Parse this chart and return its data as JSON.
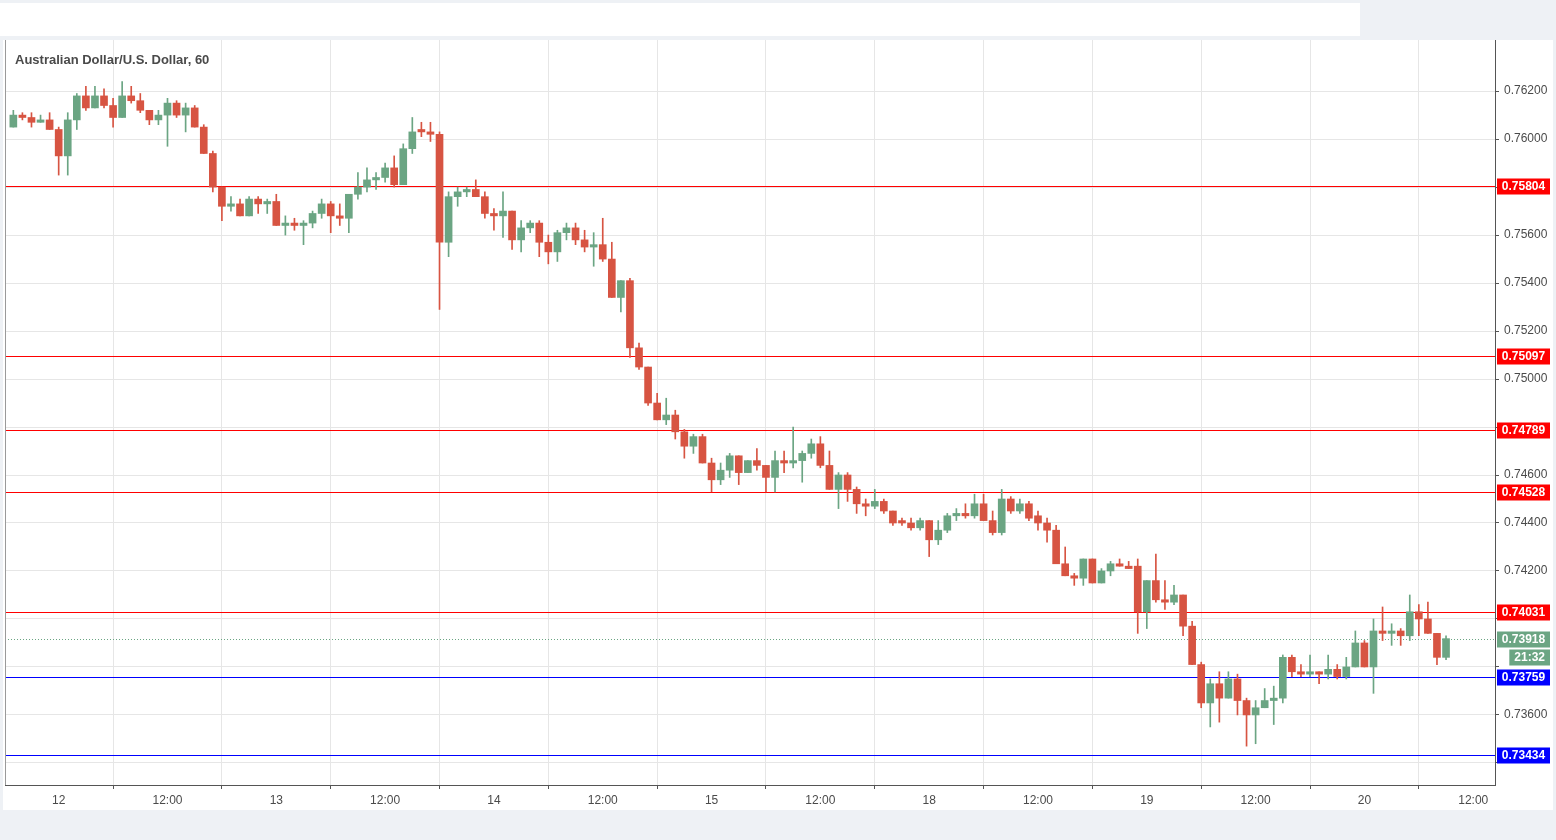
{
  "chart_data": {
    "type": "candlestick",
    "title": "Australian Dollar/U.S. Dollar, 60",
    "categories": [
      null,
      null,
      null,
      null,
      null,
      "12",
      null,
      null,
      null,
      null,
      null,
      null,
      null,
      null,
      null,
      null,
      null,
      "12:00",
      null,
      null,
      null,
      null,
      null,
      null,
      null,
      null,
      null,
      null,
      null,
      "13",
      null,
      null,
      null,
      null,
      null,
      null,
      null,
      null,
      null,
      null,
      null,
      "12:00",
      null,
      null,
      null,
      null,
      null,
      null,
      null,
      null,
      null,
      null,
      null,
      "14",
      null,
      null,
      null,
      null,
      null,
      null,
      null,
      null,
      null,
      null,
      null,
      "12:00",
      null,
      null,
      null,
      null,
      null,
      null,
      null,
      null,
      null,
      null,
      null,
      "15",
      null,
      null,
      null,
      null,
      null,
      null,
      null,
      null,
      null,
      null,
      null,
      "12:00",
      null,
      null,
      null,
      null,
      null,
      null,
      null,
      null,
      null,
      null,
      null,
      "18",
      null,
      null,
      null,
      null,
      null,
      null,
      null,
      null,
      null,
      null,
      null,
      "12:00",
      null,
      null,
      null,
      null,
      null,
      null,
      null,
      null,
      null,
      null,
      null,
      "19",
      null,
      null,
      null,
      null,
      null,
      null,
      null,
      null,
      null,
      null,
      null,
      "12:00",
      null,
      null,
      null,
      null,
      null,
      null,
      null,
      null,
      null,
      null,
      null,
      "20",
      null,
      null,
      null,
      null,
      null,
      null,
      null,
      null,
      null,
      null,
      null,
      "12:00",
      null,
      null
    ],
    "ohlc": [
      [
        0.7605,
        0.7612,
        0.7605,
        0.761
      ],
      [
        0.761,
        0.7611,
        0.7608,
        0.7609
      ],
      [
        0.7609,
        0.7611,
        0.7605,
        0.7607
      ],
      [
        0.7607,
        0.761,
        0.7607,
        0.7608
      ],
      [
        0.7608,
        0.7611,
        0.7604,
        0.7604
      ],
      [
        0.7604,
        0.7605,
        0.7585,
        0.7593
      ],
      [
        0.7593,
        0.7611,
        0.7585,
        0.7608
      ],
      [
        0.7608,
        0.7619,
        0.7604,
        0.7618
      ],
      [
        0.7618,
        0.7622,
        0.7612,
        0.7613
      ],
      [
        0.7613,
        0.7622,
        0.7613,
        0.7618
      ],
      [
        0.7618,
        0.7621,
        0.7613,
        0.7614
      ],
      [
        0.7614,
        0.7617,
        0.7605,
        0.7609
      ],
      [
        0.7609,
        0.7624,
        0.7609,
        0.7618
      ],
      [
        0.7618,
        0.7622,
        0.7615,
        0.7616
      ],
      [
        0.7616,
        0.7619,
        0.7611,
        0.7612
      ],
      [
        0.7612,
        0.7612,
        0.7606,
        0.7608
      ],
      [
        0.7608,
        0.7612,
        0.7606,
        0.761
      ],
      [
        0.761,
        0.7617,
        0.7597,
        0.7615
      ],
      [
        0.7615,
        0.7616,
        0.7609,
        0.761
      ],
      [
        0.761,
        0.7615,
        0.7603,
        0.7613
      ],
      [
        0.7613,
        0.7614,
        0.7605,
        0.7605
      ],
      [
        0.7605,
        0.7606,
        0.7594,
        0.7594
      ],
      [
        0.7594,
        0.7595,
        0.7578,
        0.758
      ],
      [
        0.758,
        0.758,
        0.7566,
        0.7572
      ],
      [
        0.7572,
        0.7576,
        0.757,
        0.7573
      ],
      [
        0.7573,
        0.7575,
        0.7568,
        0.7568
      ],
      [
        0.7568,
        0.7576,
        0.7568,
        0.7575
      ],
      [
        0.7575,
        0.7576,
        0.7569,
        0.7573
      ],
      [
        0.7573,
        0.7575,
        0.7569,
        0.7574
      ],
      [
        0.7574,
        0.7577,
        0.7564,
        0.7564
      ],
      [
        0.7564,
        0.7568,
        0.756,
        0.7565
      ],
      [
        0.7565,
        0.7567,
        0.7562,
        0.7564
      ],
      [
        0.7564,
        0.7566,
        0.7556,
        0.7565
      ],
      [
        0.7565,
        0.757,
        0.7563,
        0.7569
      ],
      [
        0.7569,
        0.7575,
        0.7567,
        0.7573
      ],
      [
        0.7573,
        0.7574,
        0.7561,
        0.7568
      ],
      [
        0.7568,
        0.7573,
        0.7564,
        0.7567
      ],
      [
        0.7567,
        0.7577,
        0.7561,
        0.7577
      ],
      [
        0.7577,
        0.7586,
        0.7575,
        0.758
      ],
      [
        0.758,
        0.7588,
        0.7578,
        0.7583
      ],
      [
        0.7583,
        0.7586,
        0.7579,
        0.7584
      ],
      [
        0.7584,
        0.759,
        0.7582,
        0.7588
      ],
      [
        0.7588,
        0.7593,
        0.758,
        0.7581
      ],
      [
        0.7581,
        0.7598,
        0.7581,
        0.7596
      ],
      [
        0.7596,
        0.7609,
        0.7594,
        0.7603
      ],
      [
        0.7604,
        0.7607,
        0.7601,
        0.7603
      ],
      [
        0.7603,
        0.7607,
        0.7599,
        0.7602
      ],
      [
        0.7602,
        0.7603,
        0.7529,
        0.7557
      ],
      [
        0.7557,
        0.7578,
        0.7551,
        0.7576
      ],
      [
        0.7576,
        0.758,
        0.7572,
        0.7578
      ],
      [
        0.7578,
        0.758,
        0.7576,
        0.7579
      ],
      [
        0.7579,
        0.7583,
        0.7576,
        0.7576
      ],
      [
        0.7576,
        0.7578,
        0.7567,
        0.7569
      ],
      [
        0.7569,
        0.7571,
        0.7562,
        0.7568
      ],
      [
        0.7568,
        0.7578,
        0.7559,
        0.757
      ],
      [
        0.757,
        0.757,
        0.7554,
        0.7558
      ],
      [
        0.7558,
        0.7566,
        0.7553,
        0.7563
      ],
      [
        0.7563,
        0.7566,
        0.7561,
        0.7565
      ],
      [
        0.7565,
        0.7566,
        0.7551,
        0.7557
      ],
      [
        0.7557,
        0.756,
        0.7548,
        0.7553
      ],
      [
        0.7553,
        0.7562,
        0.7549,
        0.7561
      ],
      [
        0.7561,
        0.7565,
        0.7558,
        0.7563
      ],
      [
        0.7563,
        0.7565,
        0.7556,
        0.7558
      ],
      [
        0.7558,
        0.7562,
        0.7553,
        0.7555
      ],
      [
        0.7555,
        0.7561,
        0.7547,
        0.7556
      ],
      [
        0.7556,
        0.7567,
        0.7549,
        0.755
      ],
      [
        0.755,
        0.7557,
        0.7534,
        0.7534
      ],
      [
        0.7534,
        0.7541,
        0.7528,
        0.7541
      ],
      [
        0.7541,
        0.7542,
        0.7509,
        0.7513
      ],
      [
        0.7513,
        0.7515,
        0.7504,
        0.7505
      ],
      [
        0.7505,
        0.7505,
        0.7489,
        0.749
      ],
      [
        0.749,
        0.7494,
        0.7483,
        0.7483
      ],
      [
        0.7483,
        0.7492,
        0.7481,
        0.7485
      ],
      [
        0.7485,
        0.7487,
        0.7475,
        0.7478
      ],
      [
        0.7478,
        0.7479,
        0.7467,
        0.7472
      ],
      [
        0.7472,
        0.7477,
        0.7469,
        0.7476
      ],
      [
        0.7476,
        0.7477,
        0.7465,
        0.7465
      ],
      [
        0.7465,
        0.7467,
        0.7453,
        0.7458
      ],
      [
        0.7458,
        0.7465,
        0.7456,
        0.7462
      ],
      [
        0.7462,
        0.7469,
        0.7459,
        0.7468
      ],
      [
        0.7468,
        0.7468,
        0.7456,
        0.7461
      ],
      [
        0.7461,
        0.7466,
        0.7461,
        0.7466
      ],
      [
        0.7466,
        0.7471,
        0.7462,
        0.7464
      ],
      [
        0.7464,
        0.7464,
        0.7453,
        0.7459
      ],
      [
        0.7459,
        0.747,
        0.7453,
        0.7466
      ],
      [
        0.7466,
        0.747,
        0.7461,
        0.7465
      ],
      [
        0.7465,
        0.748,
        0.7463,
        0.7466
      ],
      [
        0.7466,
        0.747,
        0.7457,
        0.7469
      ],
      [
        0.7469,
        0.7475,
        0.7467,
        0.7473
      ],
      [
        0.7473,
        0.7476,
        0.7463,
        0.7464
      ],
      [
        0.7464,
        0.747,
        0.7454,
        0.7454
      ],
      [
        0.7454,
        0.7461,
        0.7446,
        0.746
      ],
      [
        0.746,
        0.7461,
        0.7449,
        0.7454
      ],
      [
        0.7454,
        0.7455,
        0.7444,
        0.7448
      ],
      [
        0.7448,
        0.745,
        0.7443,
        0.7447
      ],
      [
        0.7447,
        0.7454,
        0.7446,
        0.7449
      ],
      [
        0.7449,
        0.745,
        0.7444,
        0.7445
      ],
      [
        0.7445,
        0.7445,
        0.7439,
        0.744
      ],
      [
        0.7441,
        0.7442,
        0.7439,
        0.744
      ],
      [
        0.744,
        0.7442,
        0.7437,
        0.7438
      ],
      [
        0.7438,
        0.7442,
        0.7437,
        0.7441
      ],
      [
        0.7441,
        0.7441,
        0.7426,
        0.7433
      ],
      [
        0.7433,
        0.7441,
        0.7431,
        0.7437
      ],
      [
        0.7437,
        0.7444,
        0.7436,
        0.7443
      ],
      [
        0.7443,
        0.7446,
        0.7441,
        0.7444
      ],
      [
        0.7444,
        0.7448,
        0.7442,
        0.7443
      ],
      [
        0.7443,
        0.7452,
        0.7442,
        0.7448
      ],
      [
        0.7448,
        0.7452,
        0.7441,
        0.7441
      ],
      [
        0.7441,
        0.7445,
        0.7435,
        0.7436
      ],
      [
        0.7436,
        0.7454,
        0.7435,
        0.745
      ],
      [
        0.745,
        0.7451,
        0.7444,
        0.7445
      ],
      [
        0.7445,
        0.745,
        0.7444,
        0.7448
      ],
      [
        0.7448,
        0.7449,
        0.7441,
        0.7442
      ],
      [
        0.7443,
        0.7445,
        0.7437,
        0.744
      ],
      [
        0.744,
        0.7442,
        0.7432,
        0.7437
      ],
      [
        0.7437,
        0.7439,
        0.7423,
        0.7423
      ],
      [
        0.7423,
        0.743,
        0.7418,
        0.7418
      ],
      [
        0.7418,
        0.7419,
        0.7414,
        0.7417
      ],
      [
        0.7417,
        0.7425,
        0.7414,
        0.7425
      ],
      [
        0.7425,
        0.7425,
        0.7415,
        0.7415
      ],
      [
        0.7415,
        0.7421,
        0.7415,
        0.742
      ],
      [
        0.742,
        0.7424,
        0.7418,
        0.7423
      ],
      [
        0.7423,
        0.7425,
        0.7422,
        0.7422
      ],
      [
        0.7422,
        0.7424,
        0.7421,
        0.7421
      ],
      [
        0.7422,
        0.7425,
        0.7394,
        0.7403
      ],
      [
        0.7403,
        0.7416,
        0.7396,
        0.7416
      ],
      [
        0.7416,
        0.7427,
        0.7407,
        0.7408
      ],
      [
        0.7408,
        0.7416,
        0.7404,
        0.7407
      ],
      [
        0.7407,
        0.7414,
        0.7406,
        0.741
      ],
      [
        0.741,
        0.741,
        0.7393,
        0.7397
      ],
      [
        0.7397,
        0.7399,
        0.7381,
        0.7381
      ],
      [
        0.7381,
        0.7382,
        0.7363,
        0.7365
      ],
      [
        0.7365,
        0.7375,
        0.7355,
        0.7373
      ],
      [
        0.7373,
        0.7378,
        0.7357,
        0.7367
      ],
      [
        0.7367,
        0.7378,
        0.7367,
        0.7375
      ],
      [
        0.7375,
        0.7377,
        0.736,
        0.7366
      ],
      [
        0.7366,
        0.7367,
        0.7347,
        0.736
      ],
      [
        0.736,
        0.7366,
        0.7348,
        0.7363
      ],
      [
        0.7363,
        0.7371,
        0.7363,
        0.7366
      ],
      [
        0.7366,
        0.7372,
        0.7356,
        0.7367
      ],
      [
        0.7367,
        0.7385,
        0.7365,
        0.7384
      ],
      [
        0.7384,
        0.7385,
        0.7376,
        0.7378
      ],
      [
        0.7378,
        0.7381,
        0.7376,
        0.7377
      ],
      [
        0.7377,
        0.7385,
        0.7376,
        0.7378
      ],
      [
        0.7378,
        0.7378,
        0.7373,
        0.7377
      ],
      [
        0.7377,
        0.7385,
        0.7375,
        0.7379
      ],
      [
        0.7379,
        0.7381,
        0.7375,
        0.7376
      ],
      [
        0.7376,
        0.7384,
        0.7375,
        0.738
      ],
      [
        0.738,
        0.7395,
        0.738,
        0.739
      ],
      [
        0.739,
        0.7391,
        0.738,
        0.738
      ],
      [
        0.738,
        0.74,
        0.7369,
        0.7395
      ],
      [
        0.7395,
        0.7405,
        0.7391,
        0.7394
      ],
      [
        0.7394,
        0.7398,
        0.7389,
        0.7395
      ],
      [
        0.7395,
        0.7396,
        0.7389,
        0.7393
      ],
      [
        0.7393,
        0.741,
        0.7391,
        0.7403
      ],
      [
        0.7403,
        0.7406,
        0.7393,
        0.74
      ],
      [
        0.74,
        0.7407,
        0.7394,
        0.7394
      ],
      [
        0.7394,
        0.7394,
        0.7381,
        0.7384
      ],
      [
        0.7384,
        0.7393,
        0.7383,
        0.73918
      ],
      null,
      null,
      null,
      null,
      null
    ],
    "colors": [
      "#6ba583",
      "#d75442",
      "#d75442",
      "#6ba583",
      "#d75442",
      "#d75442",
      "#6ba583",
      "#6ba583",
      "#d75442",
      "#6ba583",
      "#d75442",
      "#d75442",
      "#6ba583",
      "#d75442",
      "#d75442",
      "#d75442",
      "#6ba583",
      "#6ba583",
      "#d75442",
      "#6ba583",
      "#d75442",
      "#d75442",
      "#d75442",
      "#d75442",
      "#6ba583",
      "#d75442",
      "#6ba583",
      "#d75442",
      "#6ba583",
      "#d75442",
      "#6ba583",
      "#d75442",
      "#6ba583",
      "#6ba583",
      "#6ba583",
      "#d75442",
      "#d75442",
      "#6ba583",
      "#6ba583",
      "#6ba583",
      "#6ba583",
      "#6ba583",
      "#d75442",
      "#6ba583",
      "#6ba583",
      "#d75442",
      "#d75442",
      "#d75442",
      "#6ba583",
      "#6ba583",
      "#6ba583",
      "#d75442",
      "#d75442",
      "#d75442",
      "#6ba583",
      "#d75442",
      "#6ba583",
      "#6ba583",
      "#d75442",
      "#d75442",
      "#6ba583",
      "#6ba583",
      "#d75442",
      "#d75442",
      "#6ba583",
      "#d75442",
      "#d75442",
      "#6ba583",
      "#d75442",
      "#d75442",
      "#d75442",
      "#d75442",
      "#6ba583",
      "#d75442",
      "#d75442",
      "#6ba583",
      "#d75442",
      "#d75442",
      "#6ba583",
      "#6ba583",
      "#d75442",
      "#6ba583",
      "#d75442",
      "#d75442",
      "#6ba583",
      "#d75442",
      "#6ba583",
      "#6ba583",
      "#6ba583",
      "#d75442",
      "#d75442",
      "#6ba583",
      "#d75442",
      "#d75442",
      "#d75442",
      "#6ba583",
      "#d75442",
      "#d75442",
      "#d75442",
      "#d75442",
      "#6ba583",
      "#d75442",
      "#6ba583",
      "#6ba583",
      "#6ba583",
      "#d75442",
      "#6ba583",
      "#d75442",
      "#d75442",
      "#6ba583",
      "#d75442",
      "#6ba583",
      "#d75442",
      "#d75442",
      "#d75442",
      "#d75442",
      "#d75442",
      "#d75442",
      "#6ba583",
      "#d75442",
      "#6ba583",
      "#6ba583",
      "#d75442",
      "#d75442",
      "#d75442",
      "#6ba583",
      "#d75442",
      "#d75442",
      "#6ba583",
      "#d75442",
      "#d75442",
      "#d75442",
      "#6ba583",
      "#d75442",
      "#6ba583",
      "#d75442",
      "#d75442",
      "#6ba583",
      "#6ba583",
      "#6ba583",
      "#6ba583",
      "#d75442",
      "#d75442",
      "#6ba583",
      "#d75442",
      "#6ba583",
      "#d75442",
      "#6ba583",
      "#6ba583",
      "#d75442",
      "#6ba583",
      "#d75442",
      "#6ba583",
      "#d75442",
      "#6ba583",
      "#d75442",
      "#d75442",
      "#d75442",
      "#6ba583",
      null,
      null,
      null,
      null,
      null
    ],
    "ylim": [
      0.73308,
      0.76413
    ],
    "yticks": [
      {
        "value": 0.734,
        "label": null
      },
      {
        "value": 0.736,
        "label": "0.73600"
      },
      {
        "value": 0.738,
        "label": null
      },
      {
        "value": 0.74,
        "label": null
      },
      {
        "value": 0.742,
        "label": "0.74200"
      },
      {
        "value": 0.744,
        "label": "0.74400"
      },
      {
        "value": 0.746,
        "label": "0.74600"
      },
      {
        "value": 0.748,
        "label": null
      },
      {
        "value": 0.75,
        "label": "0.75000"
      },
      {
        "value": 0.752,
        "label": "0.75200"
      },
      {
        "value": 0.754,
        "label": "0.75400"
      },
      {
        "value": 0.756,
        "label": "0.75600"
      },
      {
        "value": 0.758,
        "label": null
      },
      {
        "value": 0.76,
        "label": "0.76000"
      },
      {
        "value": 0.762,
        "label": "0.76200"
      }
    ],
    "grid": true,
    "ref_lines": [
      {
        "axis": "y",
        "value": 0.75804,
        "label": "0.75804",
        "color": "#ff0000"
      },
      {
        "axis": "y",
        "value": 0.75097,
        "label": "0.75097",
        "color": "#ff0000"
      },
      {
        "axis": "y",
        "value": 0.74789,
        "label": "0.74789",
        "color": "#ff0000"
      },
      {
        "axis": "y",
        "value": 0.74528,
        "label": "0.74528",
        "color": "#ff0000"
      },
      {
        "axis": "y",
        "value": 0.74031,
        "label": "0.74031",
        "color": "#ff0000"
      },
      {
        "axis": "y",
        "value": 0.73918,
        "label": "0.73918",
        "color": "#6ba583",
        "line_style": "dotted"
      },
      {
        "axis": "y",
        "value": 0.73759,
        "label": "0.73759",
        "color": "#0000ff"
      },
      {
        "axis": "y",
        "value": 0.73434,
        "label": "0.73434",
        "color": "#0000ff"
      }
    ],
    "annotations": [
      "21:32"
    ]
  }
}
